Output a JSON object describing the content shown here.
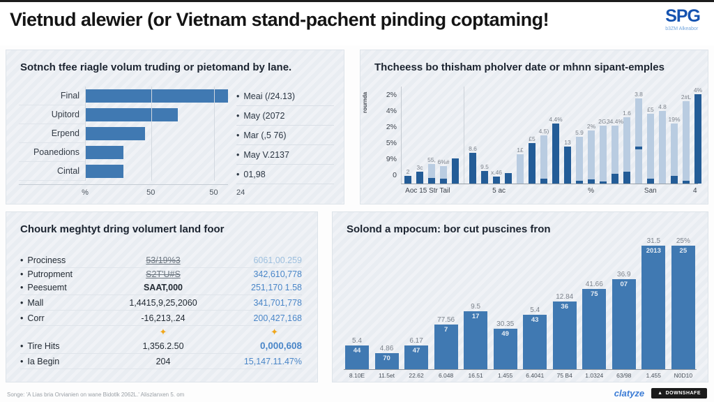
{
  "header": {
    "title": "Vietnud alewier (or Vietnam stand-pachent pinding coptaming!",
    "logo": "SPG",
    "logo_sub": "b3ZM Alkeabor"
  },
  "colors": {
    "bar_blue": "#4079b2",
    "bar_dark": "#235c97",
    "bar_light": "#b9cce1",
    "value_blue": "#4a86c8",
    "accent_orange": "#f0a71c",
    "logo_blue": "#1553b0"
  },
  "chart_data": [
    {
      "type": "bar",
      "orientation": "horizontal",
      "title": "Sotnch tfee riagle volum truding or pietomand by lane.",
      "categories": [
        "Final",
        "Upitord",
        "Erpend",
        "Poanedions",
        "Cintal"
      ],
      "values": [
        100,
        65,
        42,
        27,
        27
      ],
      "xlim": [
        0,
        100
      ],
      "xticks": [
        {
          "pos": 0,
          "label": "%"
        },
        {
          "pos": 46,
          "label": "50"
        },
        {
          "pos": 90,
          "label": "50"
        }
      ],
      "legend": [
        "Meai (/24.13)",
        "May (2072",
        "Mar (,5 76)",
        "May V.2137",
        "01,98"
      ],
      "legend_footer": "24",
      "legend_position": "right",
      "grid": true
    },
    {
      "type": "bar",
      "orientation": "vertical-stacked",
      "title": "Thcheess bo thisham pholver date or mhnn sipant-emples",
      "ylabel": "rournda",
      "yticks": [
        "2%",
        "4%",
        "2%",
        "5%",
        "9%",
        "0"
      ],
      "ylim": [
        0,
        100
      ],
      "xticks": [
        {
          "pos": 9,
          "label": "Aoc 15 Str Tail"
        },
        {
          "pos": 33,
          "label": "5 ac"
        },
        {
          "pos": 64,
          "label": "%"
        },
        {
          "pos": 84,
          "label": "San"
        },
        {
          "pos": 99,
          "label": "4"
        }
      ],
      "bars": [
        {
          "value": 8,
          "color": "dark",
          "base": 0,
          "label": "2"
        },
        {
          "value": 12,
          "color": "dark",
          "base": 0,
          "label": "3c"
        },
        {
          "value": 20,
          "color": "light",
          "base": 6,
          "label": "55,"
        },
        {
          "value": 18,
          "color": "light",
          "base": 5,
          "label": "6%#"
        },
        {
          "value": 26,
          "color": "dark",
          "base": 0,
          "label": ""
        },
        {
          "value": 32,
          "color": "dark",
          "base": 0,
          "label": "8.6"
        },
        {
          "value": 13,
          "color": "dark",
          "base": 0,
          "label": "9.5"
        },
        {
          "value": 7,
          "color": "dark",
          "base": 0,
          "label": "x.46"
        },
        {
          "value": 11,
          "color": "dark",
          "base": 0,
          "label": ""
        },
        {
          "value": 30,
          "color": "light",
          "base": 0,
          "label": "1£"
        },
        {
          "value": 42,
          "color": "dark",
          "base": 0,
          "label": "£5"
        },
        {
          "value": 50,
          "color": "light",
          "base": 5,
          "label": "4.5)"
        },
        {
          "value": 62,
          "color": "dark",
          "base": 0,
          "label": "4.4%"
        },
        {
          "value": 38,
          "color": "dark",
          "base": 0,
          "label": "13"
        },
        {
          "value": 48,
          "color": "light",
          "base": 3,
          "label": "5.9"
        },
        {
          "value": 55,
          "color": "light",
          "base": 4,
          "label": "2%"
        },
        {
          "value": 60,
          "color": "light",
          "base": 2,
          "label": "2G,"
        },
        {
          "value": 60,
          "color": "light",
          "base": 10,
          "label": "34.4%"
        },
        {
          "value": 68,
          "color": "light",
          "base": 12,
          "label": "1.6"
        },
        {
          "value": 88,
          "color": "light",
          "base": 0,
          "mid": 40,
          "label": "3.8"
        },
        {
          "value": 72,
          "color": "light",
          "base": 5,
          "label": "£5"
        },
        {
          "value": 75,
          "color": "light",
          "base": 0,
          "label": "4.8"
        },
        {
          "value": 62,
          "color": "light",
          "base": 8,
          "label": "19%"
        },
        {
          "value": 85,
          "color": "light",
          "base": 3,
          "label": "2#L"
        },
        {
          "value": 92,
          "color": "dark",
          "base": 0,
          "label": "4%"
        }
      ],
      "group_divider_after": 4
    },
    {
      "type": "table",
      "title": "Chourk meghtyt dring volumert land foor",
      "rows": [
        {
          "label": "Prociness",
          "col1": "53/19%3",
          "col2": "6061,00.259",
          "col1_style": "struck",
          "col2_style": "lightblue",
          "tight": false
        },
        {
          "label": "Putropment",
          "col1": "S2T'U#S",
          "col2": "342,610,778",
          "col1_style": "struck",
          "col2_style": "",
          "tight": true
        },
        {
          "label": "Peesuemt",
          "col1": "SAAT,000",
          "col2": "251,170 1.58",
          "col1_style": "boldc",
          "col2_style": "",
          "tight": false
        },
        {
          "label": "Mall",
          "col1": "1,4415,9,25,2060",
          "col2": "341,701,778",
          "col1_style": "",
          "col2_style": "",
          "tight": false
        },
        {
          "label": "Corr",
          "col1": "-16,213,.24",
          "col2": "200,427,168",
          "col1_style": "",
          "col2_style": "",
          "tight": false
        },
        {
          "label": "Tire Hits",
          "col1": "1,356.2.50",
          "col2": "0,000,608",
          "col1_style": "",
          "col2_style": "boldblue",
          "tight": false
        },
        {
          "label": "Ia Begin",
          "col1": "204",
          "col2": "15,147.11.47%",
          "col1_style": "",
          "col2_style": "",
          "tight": false
        }
      ],
      "sparkle_icon": "✦",
      "sparkle_after_row": 4
    },
    {
      "type": "bar",
      "orientation": "vertical",
      "title": "Solond a mpocum: bor cut puscines fron",
      "categories": [
        "8.10E",
        "11.5et",
        "22.62",
        "6.048",
        "16.51",
        "1.455",
        "6.4041",
        "75 B4",
        "1.0324",
        "63/98",
        "1.455",
        "N0D10"
      ],
      "values": [
        19,
        13,
        19,
        36,
        47,
        33,
        44,
        55,
        65,
        73,
        100,
        100
      ],
      "ylim": [
        0,
        100
      ],
      "top_labels": [
        "5.4",
        "4.86",
        "6.17",
        "77.56",
        "9.5",
        "30.35",
        "5.4",
        "12.84",
        "41.66",
        "36.9",
        "31.5",
        "25%"
      ],
      "in_labels": [
        "44",
        "70",
        "47",
        "7",
        "17",
        "49",
        "43",
        "36",
        "75",
        "07",
        "2013",
        "25"
      ]
    }
  ],
  "footer": {
    "source": "Songe: 'A Lias bria Orvianien on wane Bidotlk 2062L.' Aliszlanxen 5. om",
    "brand": "clatyze",
    "download_icon": "▲",
    "download_label": "DOWNSHAFE"
  }
}
